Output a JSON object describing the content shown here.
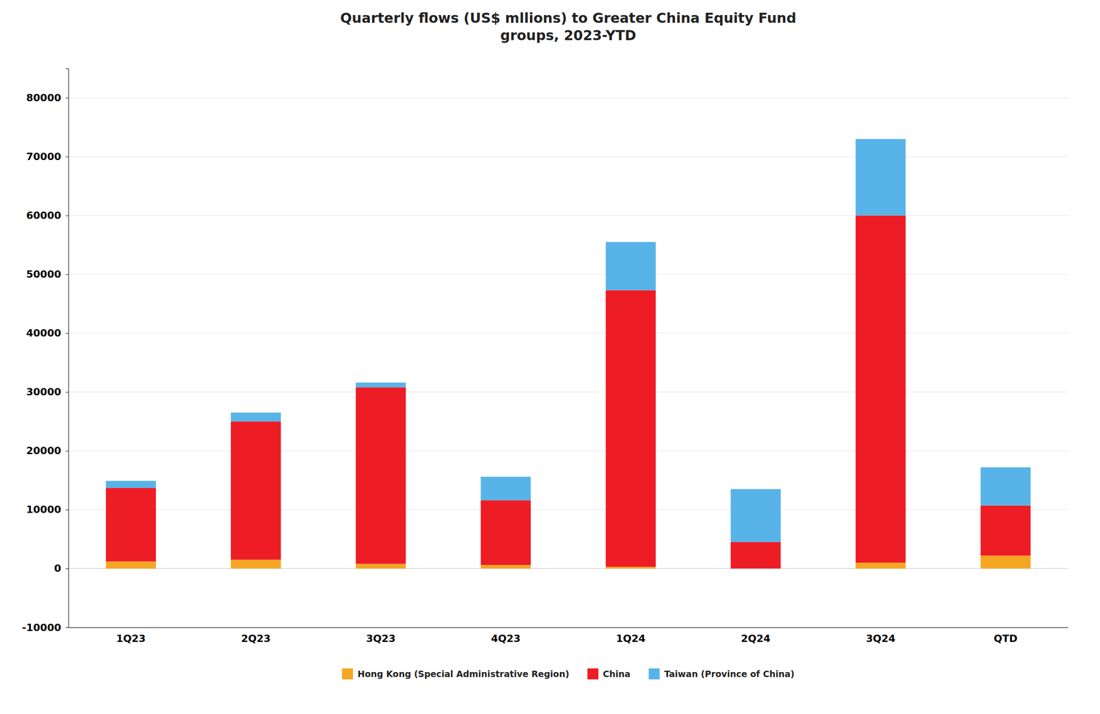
{
  "chart_data": {
    "type": "bar",
    "stacked": true,
    "title": "Quarterly flows (US$ mllions) to Greater China Equity Fund\ngroups, 2023-YTD",
    "categories": [
      "1Q23",
      "2Q23",
      "3Q23",
      "4Q23",
      "1Q24",
      "2Q24",
      "3Q24",
      "QTD"
    ],
    "series": [
      {
        "name": "Hong Kong (Special Administrative Region)",
        "color": "#F5A623",
        "values": [
          1200,
          1500,
          800,
          600,
          300,
          0,
          1000,
          2200
        ]
      },
      {
        "name": "China",
        "color": "#EE1C25",
        "values": [
          12500,
          23500,
          30000,
          11000,
          47000,
          4500,
          59000,
          8500
        ]
      },
      {
        "name": "Taiwan (Province of China)",
        "color": "#58B4E8",
        "values": [
          1200,
          1500,
          800,
          4000,
          8200,
          9000,
          13000,
          6500
        ]
      }
    ],
    "ylim": [
      -10000,
      85000
    ],
    "yticks": [
      -10000,
      0,
      10000,
      20000,
      30000,
      40000,
      50000,
      60000,
      70000,
      80000
    ],
    "grid": true,
    "legend": "bottom"
  }
}
